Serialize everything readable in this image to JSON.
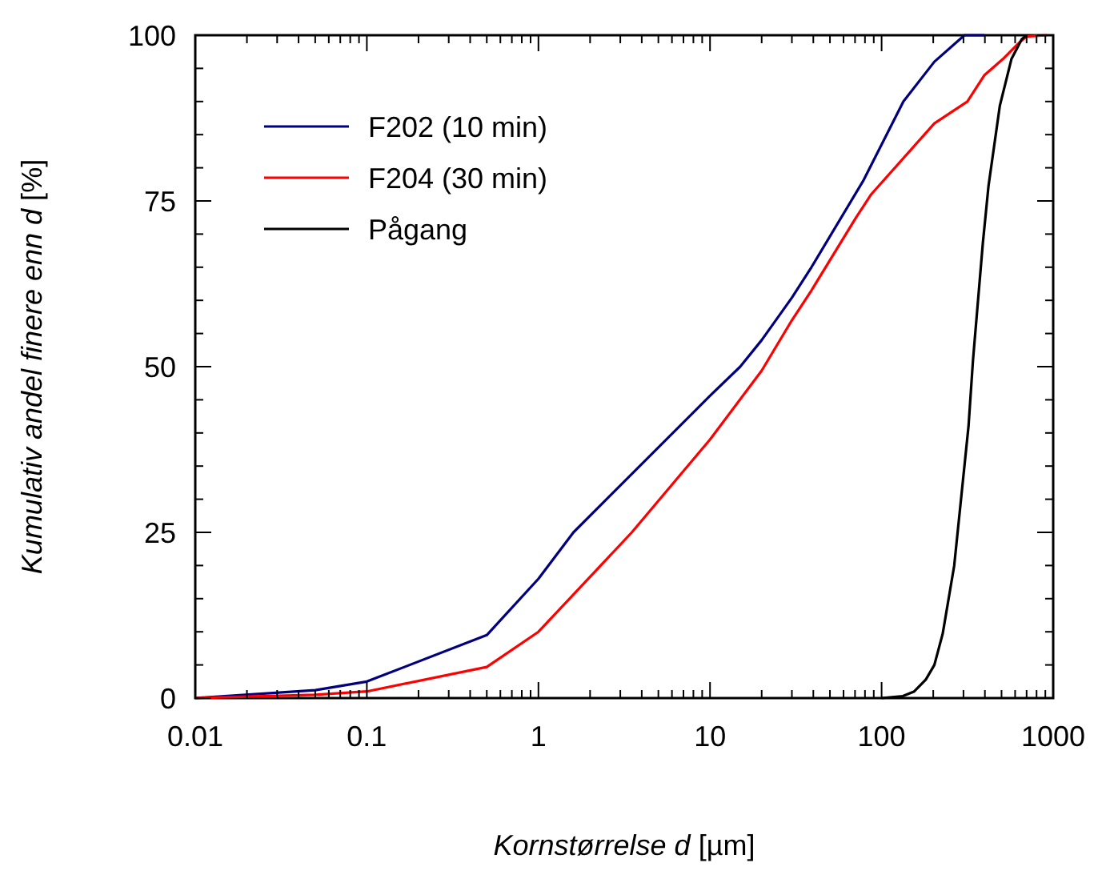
{
  "chart_data": {
    "type": "line",
    "xlabel": "Kornstørrelse d [µm]",
    "ylabel": "Kumulativ andel finere enn d [%]",
    "log": "x",
    "xlim": [
      0.01,
      1000
    ],
    "ylim": [
      0,
      100
    ],
    "xticks": [
      0.01,
      {
        "value": 0.02,
        "label": null
      },
      {
        "value": 0.03,
        "label": null
      },
      {
        "value": 0.04,
        "label": null
      },
      {
        "value": 0.05,
        "label": null
      },
      {
        "value": 0.06,
        "label": null
      },
      {
        "value": 0.07,
        "label": null
      },
      {
        "value": 0.08,
        "label": null
      },
      {
        "value": 0.09,
        "label": null
      },
      0.1,
      {
        "value": 0.2,
        "label": null
      },
      {
        "value": 0.3,
        "label": null
      },
      {
        "value": 0.4,
        "label": null
      },
      {
        "value": 0.5,
        "label": null
      },
      {
        "value": 0.6,
        "label": null
      },
      {
        "value": 0.7,
        "label": null
      },
      {
        "value": 0.8,
        "label": null
      },
      {
        "value": 0.9,
        "label": null
      },
      1,
      {
        "value": 2,
        "label": null
      },
      {
        "value": 3,
        "label": null
      },
      {
        "value": 4,
        "label": null
      },
      {
        "value": 5,
        "label": null
      },
      {
        "value": 6,
        "label": null
      },
      {
        "value": 7,
        "label": null
      },
      {
        "value": 8,
        "label": null
      },
      {
        "value": 9,
        "label": null
      },
      10,
      {
        "value": 20,
        "label": null
      },
      {
        "value": 30,
        "label": null
      },
      {
        "value": 40,
        "label": null
      },
      {
        "value": 50,
        "label": null
      },
      {
        "value": 60,
        "label": null
      },
      {
        "value": 70,
        "label": null
      },
      {
        "value": 80,
        "label": null
      },
      {
        "value": 90,
        "label": null
      },
      100,
      {
        "value": 200,
        "label": null
      },
      {
        "value": 300,
        "label": null
      },
      {
        "value": 400,
        "label": null
      },
      {
        "value": 500,
        "label": null
      },
      {
        "value": 600,
        "label": null
      },
      {
        "value": 700,
        "label": null
      },
      {
        "value": 800,
        "label": null
      },
      {
        "value": 900,
        "label": null
      },
      1000
    ],
    "yticks": [
      0,
      {
        "value": 5,
        "label": null
      },
      {
        "value": 10,
        "label": null
      },
      {
        "value": 15,
        "label": null
      },
      {
        "value": 20,
        "label": null
      },
      25,
      {
        "value": 30,
        "label": null
      },
      {
        "value": 35,
        "label": null
      },
      {
        "value": 40,
        "label": null
      },
      {
        "value": 45,
        "label": null
      },
      50,
      {
        "value": 55,
        "label": null
      },
      {
        "value": 60,
        "label": null
      },
      {
        "value": 65,
        "label": null
      },
      {
        "value": 70,
        "label": null
      },
      75,
      {
        "value": 80,
        "label": null
      },
      {
        "value": 85,
        "label": null
      },
      {
        "value": 90,
        "label": null
      },
      {
        "value": 95,
        "label": null
      },
      100
    ],
    "grid": false,
    "legend": "top left",
    "marker": "none",
    "line_style": "solid",
    "series": [
      {
        "name": "F202 (10 min)",
        "color": "#000080",
        "x": [
          0.01,
          0.05,
          0.1,
          0.5,
          1,
          1.6,
          10,
          15,
          20,
          30,
          39,
          78,
          134,
          203,
          304,
          398
        ],
        "values": [
          0,
          1.2,
          2.5,
          9.5,
          18,
          25,
          45.6,
          50,
          54,
          60.4,
          65,
          78,
          90,
          96,
          100,
          100
        ]
      },
      {
        "name": "F204 (30 min)",
        "color": "#ff0000",
        "x": [
          0.01,
          0.05,
          0.1,
          0.5,
          1,
          3.5,
          10,
          20,
          30,
          39,
          71,
          87,
          203,
          316,
          398,
          509,
          641,
          700,
          919
        ],
        "values": [
          0,
          0.5,
          1,
          4.7,
          10,
          25,
          39,
          49.4,
          57,
          61.5,
          72.5,
          76,
          86.7,
          90,
          94,
          96.4,
          99,
          99.8,
          100
        ]
      },
      {
        "name": "Pågang",
        "color": "#000000",
        "x": [
          100,
          133,
          155,
          181,
          203,
          227,
          265,
          321,
          341,
          389,
          420,
          489,
          571,
          656,
          700
        ],
        "values": [
          0,
          0.3,
          1,
          2.8,
          5,
          9.7,
          20,
          41,
          51,
          68.6,
          77.3,
          89.4,
          96.4,
          99.4,
          100
        ]
      }
    ]
  }
}
